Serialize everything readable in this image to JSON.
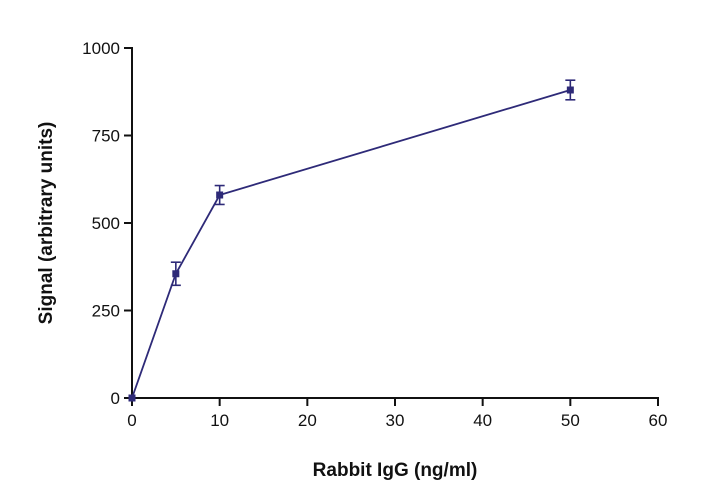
{
  "chart_data": {
    "type": "line",
    "title": "",
    "xlabel": "Rabbit IgG (ng/ml)",
    "ylabel": "Signal (arbitrary units)",
    "xlim": [
      0,
      60
    ],
    "ylim": [
      0,
      1000
    ],
    "xticks": [
      0,
      10,
      20,
      30,
      40,
      50,
      60
    ],
    "yticks": [
      0,
      250,
      500,
      750,
      1000
    ],
    "grid": false,
    "series": [
      {
        "x": [
          0,
          5,
          10,
          50
        ],
        "y": [
          0,
          355,
          580,
          880
        ],
        "error": [
          0,
          33,
          27,
          28
        ],
        "color": "#2e2a78",
        "marker": "square"
      }
    ]
  }
}
